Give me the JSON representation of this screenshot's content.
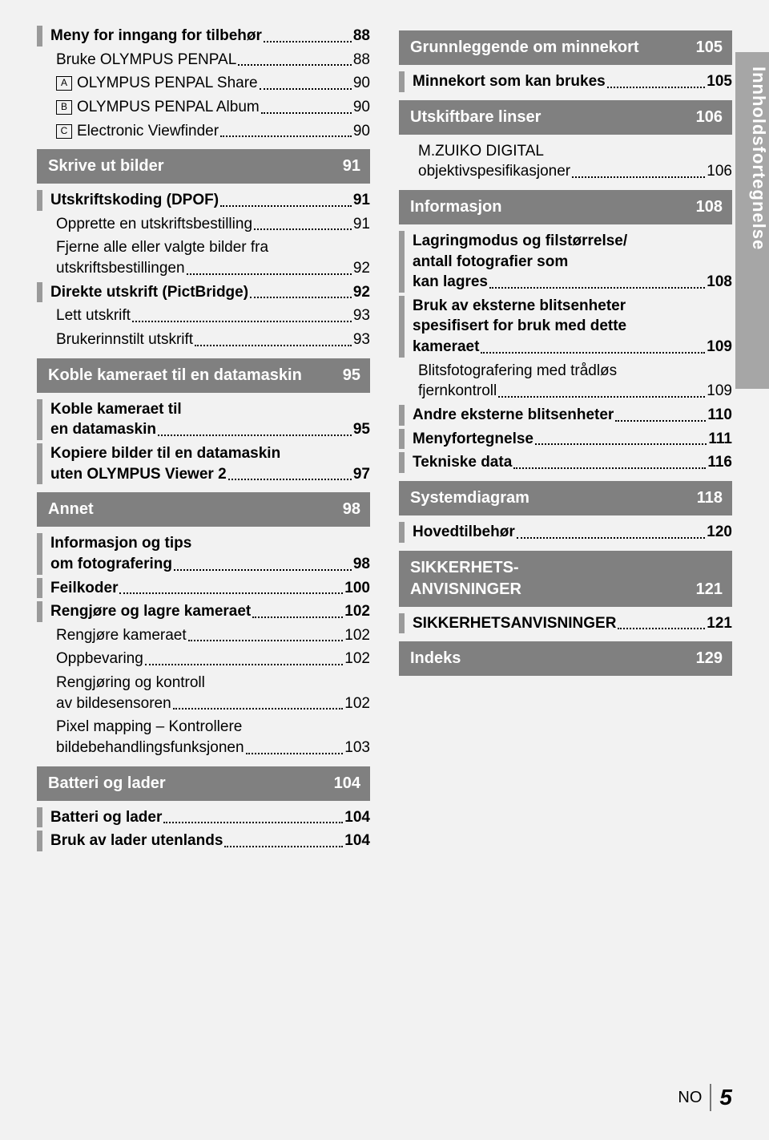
{
  "sideLabel": "Innholdsfortegnelse",
  "footer": {
    "lang": "NO",
    "page": "5"
  },
  "columns": {
    "left": [
      {
        "type": "barred",
        "lines": [
          [
            "Meny for inngang for tilbehør",
            "88"
          ]
        ]
      },
      {
        "type": "sub",
        "indent": 2,
        "lines": [
          [
            "Bruke OLYMPUS PENPAL",
            "88"
          ]
        ]
      },
      {
        "type": "sub",
        "indent": 2,
        "icon": "A",
        "lines": [
          [
            "OLYMPUS PENPAL Share",
            "90"
          ]
        ]
      },
      {
        "type": "sub",
        "indent": 2,
        "icon": "B",
        "lines": [
          [
            "OLYMPUS PENPAL Album",
            "90"
          ]
        ]
      },
      {
        "type": "sub",
        "indent": 2,
        "icon": "C",
        "lines": [
          [
            "Electronic Viewfinder",
            "90"
          ]
        ]
      },
      {
        "type": "section",
        "title": "Skrive ut bilder",
        "page": "91"
      },
      {
        "type": "barred",
        "lines": [
          [
            "Utskriftskoding (DPOF)",
            "91"
          ]
        ]
      },
      {
        "type": "sub",
        "indent": 2,
        "lines": [
          [
            "Opprette en utskriftsbestilling",
            "91"
          ]
        ]
      },
      {
        "type": "sub",
        "indent": 2,
        "lines": [
          [
            "Fjerne alle eller valgte bilder fra"
          ],
          [
            "utskriftsbestillingen",
            "92"
          ]
        ]
      },
      {
        "type": "barred",
        "lines": [
          [
            "Direkte utskrift (PictBridge)",
            "92"
          ]
        ]
      },
      {
        "type": "sub",
        "indent": 2,
        "lines": [
          [
            "Lett utskrift",
            "93"
          ]
        ]
      },
      {
        "type": "sub",
        "indent": 2,
        "lines": [
          [
            "Brukerinnstilt utskrift",
            "93"
          ]
        ]
      },
      {
        "type": "section",
        "title": "Koble kameraet til en datamaskin",
        "page": "95"
      },
      {
        "type": "barred",
        "lines": [
          [
            "Koble kameraet til"
          ],
          [
            "en datamaskin",
            "95"
          ]
        ]
      },
      {
        "type": "barred",
        "lines": [
          [
            "Kopiere bilder til en datamaskin"
          ],
          [
            "uten OLYMPUS Viewer 2",
            "97"
          ]
        ]
      },
      {
        "type": "section",
        "title": "Annet",
        "page": "98"
      },
      {
        "type": "barred",
        "lines": [
          [
            "Informasjon og tips"
          ],
          [
            "om fotografering",
            "98"
          ]
        ]
      },
      {
        "type": "barred",
        "lines": [
          [
            "Feilkoder",
            "100"
          ]
        ]
      },
      {
        "type": "barred",
        "lines": [
          [
            "Rengjøre og lagre kameraet",
            "102"
          ]
        ]
      },
      {
        "type": "sub",
        "indent": 2,
        "lines": [
          [
            "Rengjøre kameraet",
            "102"
          ]
        ]
      },
      {
        "type": "sub",
        "indent": 2,
        "lines": [
          [
            "Oppbevaring",
            "102"
          ]
        ]
      },
      {
        "type": "sub",
        "indent": 2,
        "lines": [
          [
            "Rengjøring og kontroll"
          ],
          [
            "av bildesensoren",
            "102"
          ]
        ]
      },
      {
        "type": "sub",
        "indent": 2,
        "lines": [
          [
            "Pixel mapping – Kontrollere"
          ],
          [
            "bildebehandlingsfunksjonen",
            "103"
          ]
        ]
      },
      {
        "type": "section",
        "title": "Batteri og lader",
        "page": "104"
      },
      {
        "type": "barred",
        "lines": [
          [
            "Batteri og lader",
            "104"
          ]
        ]
      },
      {
        "type": "barred",
        "lines": [
          [
            "Bruk av lader utenlands",
            "104"
          ]
        ]
      }
    ],
    "right": [
      {
        "type": "section",
        "title": "Grunnleggende om minnekort",
        "page": "105"
      },
      {
        "type": "barred",
        "lines": [
          [
            "Minnekort som kan brukes",
            "105"
          ]
        ]
      },
      {
        "type": "section",
        "title": "Utskiftbare linser",
        "page": "106"
      },
      {
        "type": "sub",
        "indent": 2,
        "lines": [
          [
            "M.ZUIKO DIGITAL"
          ],
          [
            "objektivspesifikasjoner",
            "106"
          ]
        ]
      },
      {
        "type": "section",
        "title": "Informasjon",
        "page": "108"
      },
      {
        "type": "barred",
        "lines": [
          [
            "Lagringmodus og filstørrelse/"
          ],
          [
            "antall fotografier som"
          ],
          [
            "kan lagres",
            "108"
          ]
        ]
      },
      {
        "type": "barred",
        "lines": [
          [
            "Bruk av eksterne blitsenheter"
          ],
          [
            "spesifisert for bruk med dette"
          ],
          [
            "kameraet",
            "109"
          ]
        ]
      },
      {
        "type": "sub",
        "indent": 2,
        "lines": [
          [
            "Blitsfotografering med trådløs"
          ],
          [
            "fjernkontroll",
            "109"
          ]
        ]
      },
      {
        "type": "barred",
        "lines": [
          [
            "Andre eksterne blitsenheter",
            "110"
          ]
        ]
      },
      {
        "type": "barred",
        "lines": [
          [
            "Menyfortegnelse",
            "111"
          ]
        ]
      },
      {
        "type": "barred",
        "lines": [
          [
            "Tekniske data",
            "116"
          ]
        ]
      },
      {
        "type": "section",
        "title": "Systemdiagram",
        "page": "118"
      },
      {
        "type": "barred",
        "lines": [
          [
            "Hovedtilbehør",
            "120"
          ]
        ]
      },
      {
        "type": "section",
        "title": "SIKKERHETS-\nANVISNINGER",
        "page": "121"
      },
      {
        "type": "barred",
        "lines": [
          [
            "SIKKERHETSANVISNINGER",
            "121"
          ]
        ]
      },
      {
        "type": "section",
        "title": "Indeks",
        "page": "129"
      }
    ]
  }
}
